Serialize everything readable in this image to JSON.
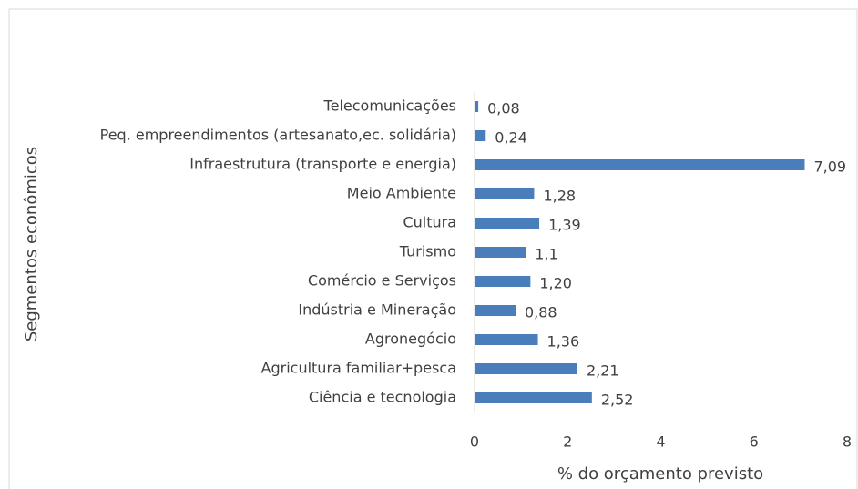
{
  "chart_data": {
    "type": "bar",
    "orientation": "horizontal",
    "x_label": "% do orçamento previsto",
    "y_label": "Segmentos econômicos",
    "categories": [
      "Telecomunicações",
      "Peq. empreendimentos (artesanato,ec. solidária)",
      "Infraestrutura  (transporte e energia)",
      "Meio Ambiente",
      "Cultura",
      "Turismo",
      "Comércio e Serviços",
      "Indústria e Mineração",
      "Agronegócio",
      "Agricultura familiar+pesca",
      "Ciência e tecnologia"
    ],
    "values": [
      0.08,
      0.24,
      7.09,
      1.28,
      1.39,
      1.1,
      1.2,
      0.88,
      1.36,
      2.21,
      2.52
    ],
    "value_labels": [
      "0,08",
      "0,24",
      "7,09",
      "1,28",
      "1,39",
      "1,1",
      "1,20",
      "0,88",
      "1,36",
      "2,21",
      "2,52"
    ],
    "color": "#4a7ebb",
    "xlim": [
      0,
      8
    ],
    "xticks": [
      0,
      2,
      4,
      6,
      8
    ],
    "grid": false
  }
}
